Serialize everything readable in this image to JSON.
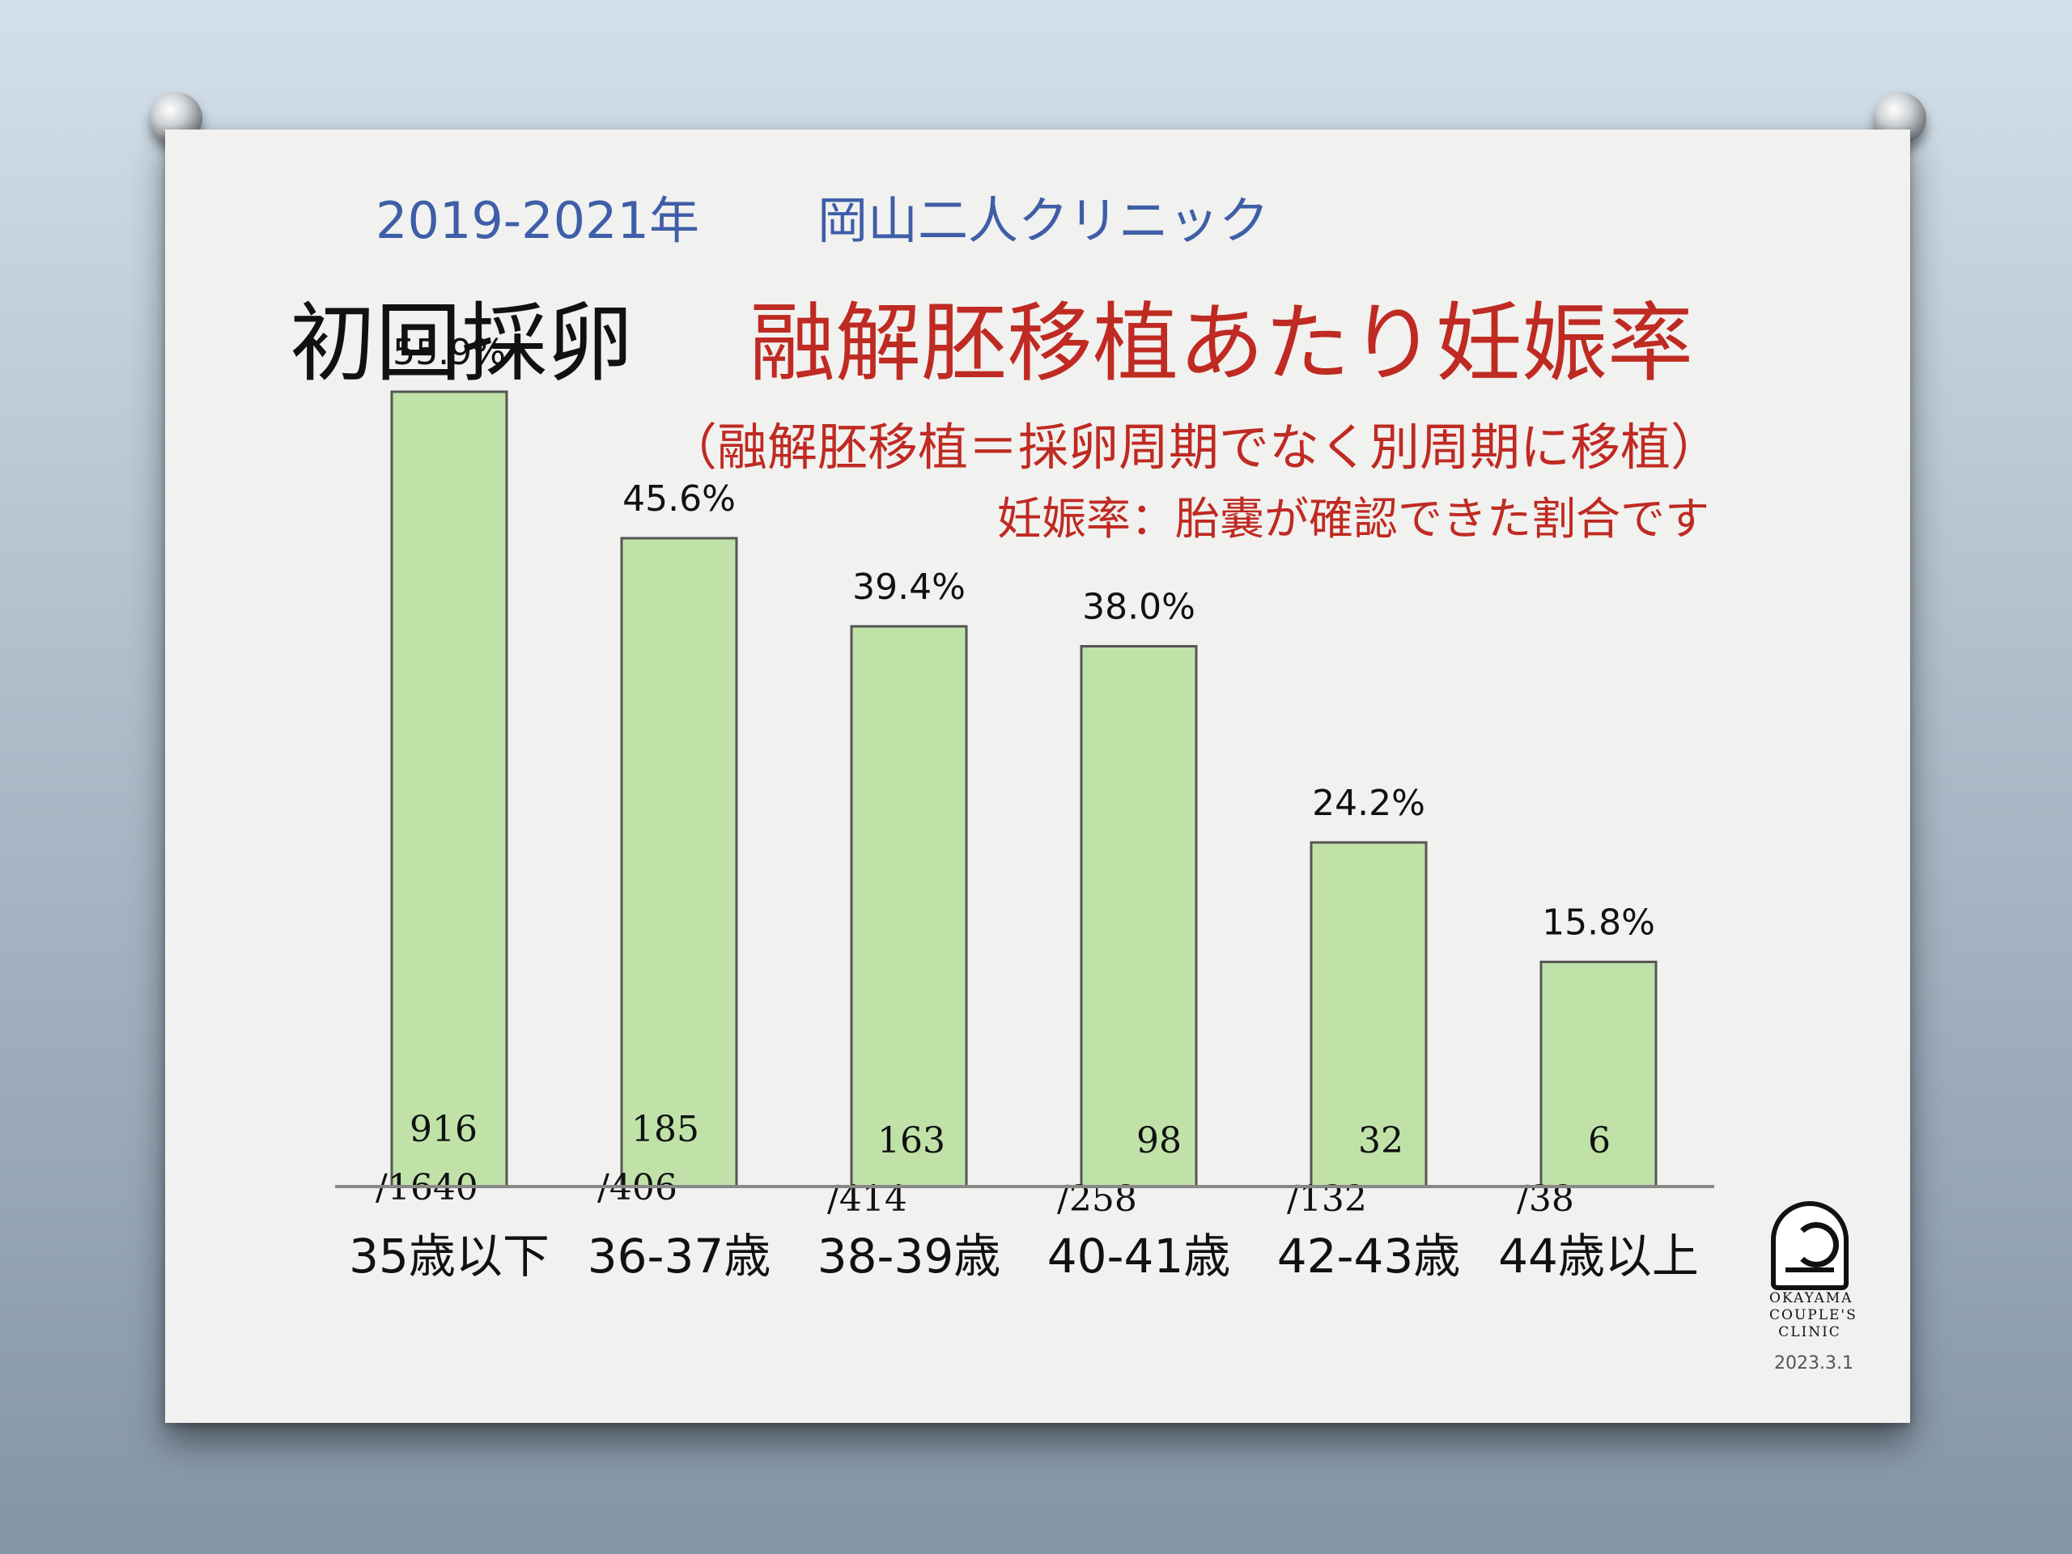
{
  "header": {
    "years": "2019-2021年",
    "clinic": "岡山二人クリニック"
  },
  "title": {
    "black": "初回採卵",
    "red": "融解胚移植あたり妊娠率"
  },
  "subtitle": "（融解胚移植＝採卵周期でなく別周期に移植）",
  "note": "妊娠率：胎嚢が確認できた割合です",
  "logo": {
    "line1": "OKAYAMA",
    "line2": "COUPLE'S",
    "line3": "CLINIC"
  },
  "date": "2023.3.1",
  "colors": {
    "bar_fill": "#c0e2a9",
    "bar_stroke": "#555555",
    "red": "#bf2a22",
    "blue": "#3f5ea8"
  },
  "chart_data": {
    "type": "bar",
    "categories": [
      "35歳以下",
      "36-37歳",
      "38-39歳",
      "40-41歳",
      "42-43歳",
      "44歳以上"
    ],
    "values": [
      55.9,
      45.6,
      39.4,
      38.0,
      24.2,
      15.8
    ],
    "value_labels": [
      "55.9%",
      "45.6%",
      "39.4%",
      "38.0%",
      "24.2%",
      "15.8%"
    ],
    "numerators": [
      "916",
      "185",
      "163",
      "98",
      "32",
      "6"
    ],
    "denominators": [
      "/1640",
      "/406",
      "/414",
      "/258",
      "/132",
      "/38"
    ],
    "ylim": [
      0,
      60
    ],
    "grid": false,
    "legend": "none"
  }
}
